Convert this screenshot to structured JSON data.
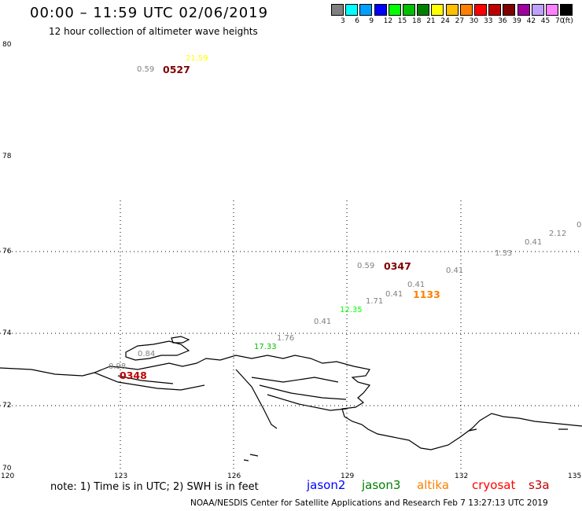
{
  "title": "00:00 – 11:59 UTC 02/06/2019",
  "subtitle": "12 hour collection of altimeter wave heights",
  "legend": {
    "labels": [
      "3",
      "6",
      "9",
      "12",
      "15",
      "18",
      "21",
      "24",
      "27",
      "30",
      "33",
      "36",
      "39",
      "42",
      "45",
      "70",
      "(ft)"
    ],
    "colors": [
      "#808080",
      "#00ffff",
      "#00a0ff",
      "#0000ff",
      "#00ff00",
      "#00c000",
      "#008000",
      "#ffff00",
      "#ffc000",
      "#ff8000",
      "#ff0000",
      "#c00000",
      "#800000",
      "#a000a0",
      "#c0a0ff",
      "#ff80ff",
      "#000000"
    ]
  },
  "lat_labels": [
    "80",
    "78",
    "76",
    "74",
    "72",
    "70"
  ],
  "lon_labels": [
    "120",
    "123",
    "126",
    "129",
    "132",
    "135"
  ],
  "observations": [
    {
      "text": "21.59",
      "color": "#ffff00"
    },
    {
      "text": "0.59",
      "color": "#808080"
    },
    {
      "text": "0527",
      "color": "#800000"
    },
    {
      "text": "0",
      "color": "#808080"
    },
    {
      "text": "2.12",
      "color": "#808080"
    },
    {
      "text": "0.41",
      "color": "#808080"
    },
    {
      "text": "1.33",
      "color": "#808080"
    },
    {
      "text": "0.59",
      "color": "#808080"
    },
    {
      "text": "0347",
      "color": "#800000"
    },
    {
      "text": "0.41",
      "color": "#808080"
    },
    {
      "text": "0.41",
      "color": "#808080"
    },
    {
      "text": "0.41",
      "color": "#808080"
    },
    {
      "text": "1133",
      "color": "#ff8000"
    },
    {
      "text": "1.71",
      "color": "#808080"
    },
    {
      "text": "12.35",
      "color": "#00ff00"
    },
    {
      "text": "0.41",
      "color": "#808080"
    },
    {
      "text": "1.76",
      "color": "#808080"
    },
    {
      "text": "17.33",
      "color": "#00c000"
    },
    {
      "text": "0.84",
      "color": "#808080"
    },
    {
      "text": "0.98",
      "color": "#808080"
    },
    {
      "text": "0348",
      "color": "#c00000"
    }
  ],
  "note": "note: 1) Time is in UTC; 2) SWH is in feet",
  "satellites": [
    {
      "name": "jason2",
      "color": "#0000ff"
    },
    {
      "name": "jason3",
      "color": "#008000"
    },
    {
      "name": "altika",
      "color": "#ff8000"
    },
    {
      "name": "cryosat",
      "color": "#ff0000"
    },
    {
      "name": "s3a",
      "color": "#c00000"
    }
  ],
  "footer": "NOAA/NESDIS Center for Satellite Applications and Research    Feb  7 13:27:13 UTC 2019"
}
